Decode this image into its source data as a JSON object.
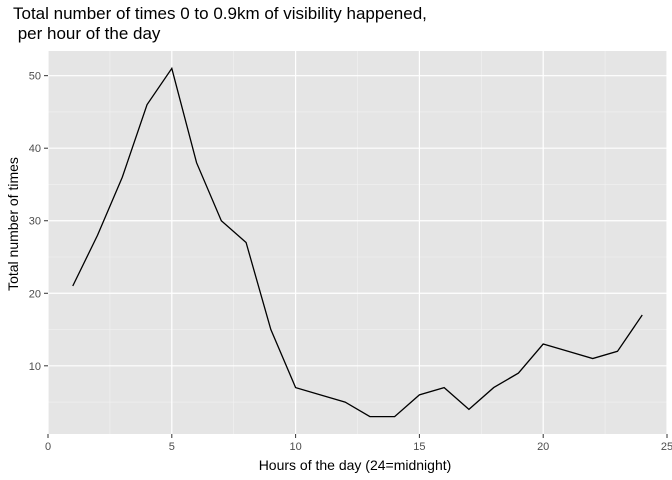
{
  "chart_data": {
    "type": "line",
    "title_lines": [
      "Total number of times 0 to 0.9km of visibility happened,",
      " per hour of the day"
    ],
    "xlabel": "Hours of the day (24=midnight)",
    "ylabel": "Total number of times",
    "xlim": [
      0,
      25
    ],
    "ylim": [
      0.6,
      53.4
    ],
    "x_ticks": [
      0,
      5,
      10,
      15,
      20,
      25
    ],
    "y_ticks": [
      10,
      20,
      30,
      40,
      50
    ],
    "x_minor_ticks": [
      2.5,
      7.5,
      12.5,
      17.5,
      22.5
    ],
    "y_minor_ticks": [
      5,
      15,
      25,
      35,
      45
    ],
    "grid": true,
    "legend": "none",
    "series": [
      {
        "x": [
          1,
          2,
          3,
          4,
          5,
          6,
          7,
          8,
          9,
          10,
          11,
          12,
          13,
          14,
          15,
          16,
          17,
          18,
          19,
          20,
          21,
          22,
          23,
          24
        ],
        "values": [
          21,
          28,
          36,
          46,
          51,
          38,
          30,
          27,
          15,
          7,
          6,
          5,
          3,
          3,
          6,
          7,
          4,
          7,
          9,
          13,
          12,
          11,
          12,
          17
        ]
      }
    ],
    "colors": {
      "panel": "#e5e5e5",
      "grid_major": "#ffffff",
      "grid_minor": "#f2f2f2",
      "line": "#000000",
      "tick": "#333333"
    }
  }
}
